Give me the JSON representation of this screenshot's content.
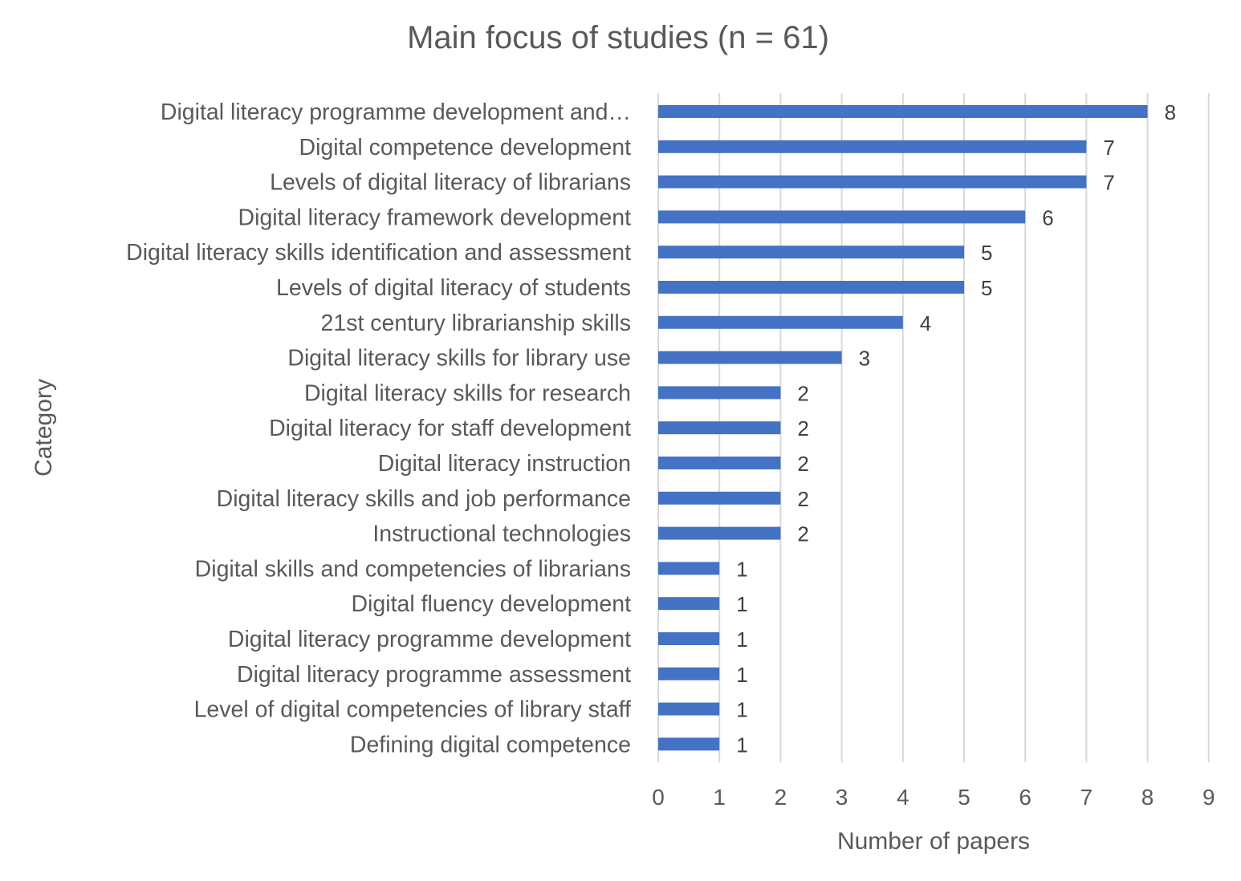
{
  "chart_data": {
    "type": "bar",
    "orientation": "horizontal",
    "title": "Main focus of studies (n = 61)",
    "xlabel": "Number of papers",
    "ylabel": "Category",
    "xlim": [
      0,
      9
    ],
    "xticks": [
      "0",
      "1",
      "2",
      "3",
      "4",
      "5",
      "6",
      "7",
      "8",
      "9"
    ],
    "grid": true,
    "legend": "none",
    "bar_color": "#4472C4",
    "categories": [
      "Digital literacy programme development and…",
      "Digital competence development",
      "Levels of digital literacy of librarians",
      "Digital literacy framework development",
      "Digital literacy skills identification and assessment",
      "Levels of digital literacy of students",
      "21st century librarianship skills",
      "Digital literacy skills for library use",
      "Digital literacy skills for research",
      "Digital literacy for staff development",
      "Digital literacy instruction",
      "Digital literacy skills and job performance",
      "Instructional technologies",
      "Digital skills and competencies of librarians",
      "Digital fluency development",
      "Digital literacy programme development",
      "Digital literacy programme assessment",
      "Level of digital competencies of library staff",
      "Defining digital competence"
    ],
    "values": [
      8,
      7,
      7,
      6,
      5,
      5,
      4,
      3,
      2,
      2,
      2,
      2,
      2,
      1,
      1,
      1,
      1,
      1,
      1
    ]
  }
}
